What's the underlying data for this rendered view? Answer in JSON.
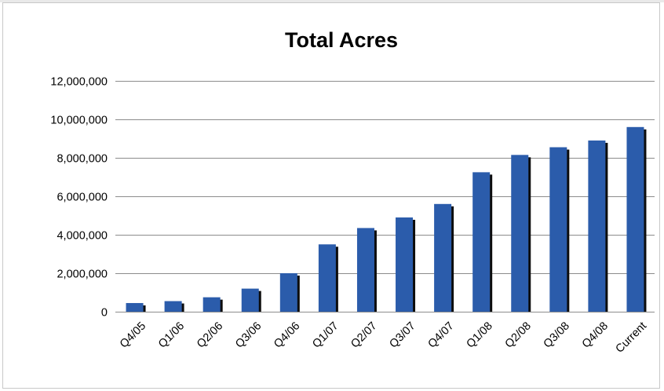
{
  "chart_data": {
    "type": "bar",
    "title": "Total Acres",
    "xlabel": "",
    "ylabel": "",
    "categories": [
      "Q4/05",
      "Q1/06",
      "Q2/06",
      "Q3/06",
      "Q4/06",
      "Q1/07",
      "Q2/07",
      "Q3/07",
      "Q4/07",
      "Q1/08",
      "Q2/08",
      "Q3/08",
      "Q4/08",
      "Current"
    ],
    "values": [
      450000,
      550000,
      750000,
      1200000,
      2000000,
      3500000,
      4350000,
      4900000,
      5600000,
      7250000,
      8150000,
      8550000,
      8900000,
      9600000
    ],
    "ylim": [
      0,
      12000000
    ],
    "yticks": [
      0,
      2000000,
      4000000,
      6000000,
      8000000,
      10000000,
      12000000
    ],
    "ytick_labels": [
      "0",
      "2,000,000",
      "4,000,000",
      "6,000,000",
      "8,000,000",
      "10,000,000",
      "12,000,000"
    ],
    "grid": true,
    "legend": "none",
    "bar_color": "#2b5cab",
    "bar_shadow_color": "#0d0d0d"
  }
}
